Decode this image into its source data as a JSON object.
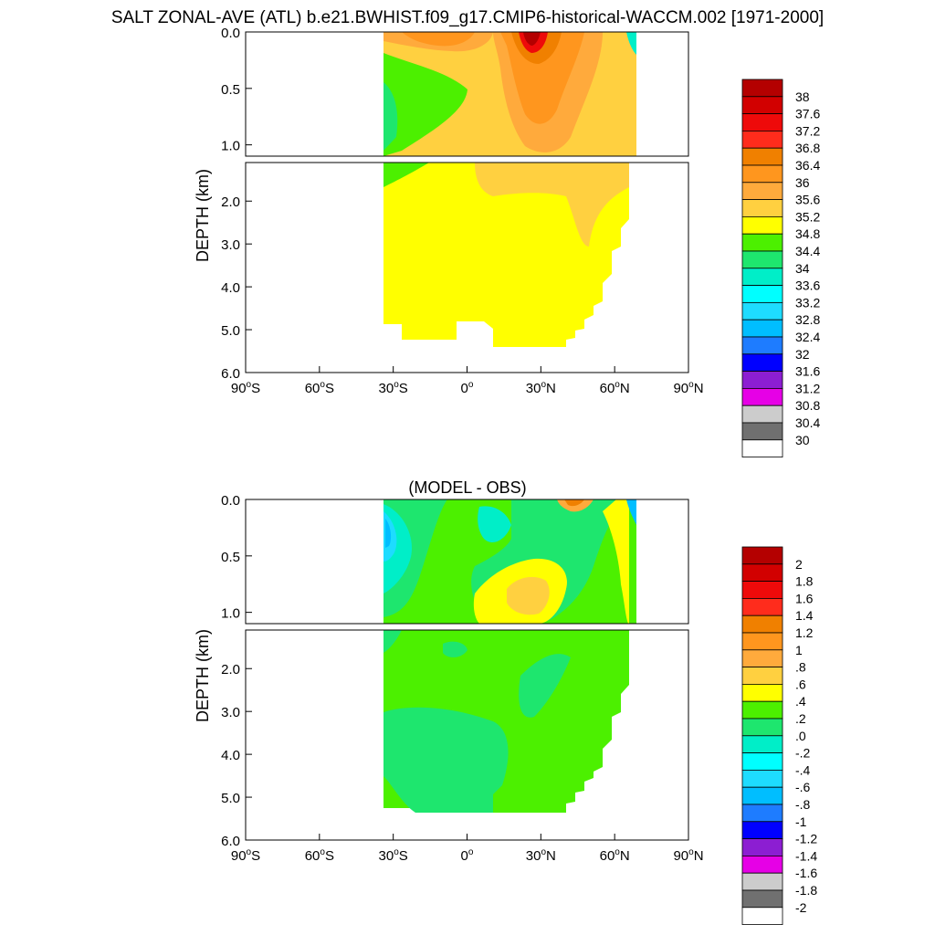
{
  "title": "SALT ZONAL-AVE (ATL) b.e21.BWHIST.f09_g17.CMIP6-historical-WACCM.002 [1971-2000]",
  "chart_data": [
    {
      "type": "heatmap",
      "panel": "top",
      "subtitle": "",
      "ylabel": "DEPTH (km)",
      "xlim": [
        -90,
        90
      ],
      "ylim": [
        0,
        6
      ],
      "y_ticks_upper": [
        "0.0",
        "0.5",
        "1.0"
      ],
      "y_ticks_lower": [
        "2.0",
        "3.0",
        "4.0",
        "5.0",
        "6.0"
      ],
      "x_ticks": [
        {
          "deg": "90",
          "sfx": "S"
        },
        {
          "deg": "60",
          "sfx": "S"
        },
        {
          "deg": "30",
          "sfx": "S"
        },
        {
          "deg": "0",
          "sfx": ""
        },
        {
          "deg": "30",
          "sfx": "N"
        },
        {
          "deg": "60",
          "sfx": "N"
        },
        {
          "deg": "90",
          "sfx": "N"
        }
      ],
      "colorbar": {
        "labels": [
          "38",
          "37.6",
          "37.2",
          "36.8",
          "36.4",
          "36",
          "35.6",
          "35.2",
          "34.8",
          "34.4",
          "34",
          "33.6",
          "33.2",
          "32.8",
          "32.4",
          "32",
          "31.6",
          "31.2",
          "30.8",
          "30.4",
          "30"
        ],
        "colors": [
          "#b40000",
          "#d20000",
          "#ee0a0a",
          "#ff2c1c",
          "#f08000",
          "#ff961e",
          "#ffaa3c",
          "#ffd040",
          "#ffff00",
          "#4cf000",
          "#1ee66e",
          "#00eec8",
          "#00ffff",
          "#1edcff",
          "#00beff",
          "#1e7cff",
          "#0000ff",
          "#8c1ed2",
          "#e600e6",
          "#cccccc",
          "#707070",
          "#ffffff"
        ]
      },
      "note_values": "Atlantic zonal-mean salinity (psu) vs latitude and depth; data extent ~34S to ~65N"
    },
    {
      "type": "heatmap",
      "panel": "bottom",
      "subtitle": "(MODEL - OBS)",
      "ylabel": "DEPTH (km)",
      "xlim": [
        -90,
        90
      ],
      "ylim": [
        0,
        6
      ],
      "y_ticks_upper": [
        "0.0",
        "0.5",
        "1.0"
      ],
      "y_ticks_lower": [
        "2.0",
        "3.0",
        "4.0",
        "5.0",
        "6.0"
      ],
      "x_ticks": [
        {
          "deg": "90",
          "sfx": "S"
        },
        {
          "deg": "60",
          "sfx": "S"
        },
        {
          "deg": "30",
          "sfx": "S"
        },
        {
          "deg": "0",
          "sfx": ""
        },
        {
          "deg": "30",
          "sfx": "N"
        },
        {
          "deg": "60",
          "sfx": "N"
        },
        {
          "deg": "90",
          "sfx": "N"
        }
      ],
      "colorbar": {
        "labels": [
          "2",
          "1.8",
          "1.6",
          "1.4",
          "1.2",
          "1",
          ".8",
          ".6",
          ".4",
          ".2",
          ".0",
          "-.2",
          "-.4",
          "-.6",
          "-.8",
          "-1",
          "-1.2",
          "-1.4",
          "-1.6",
          "-1.8",
          "-2"
        ],
        "colors": [
          "#b40000",
          "#d20000",
          "#ee0a0a",
          "#ff2c1c",
          "#f08000",
          "#ff961e",
          "#ffaa3c",
          "#ffd040",
          "#ffff00",
          "#4cf000",
          "#1ee66e",
          "#00eec8",
          "#00ffff",
          "#1edcff",
          "#00beff",
          "#1e7cff",
          "#0000ff",
          "#8c1ed2",
          "#e600e6",
          "#cccccc",
          "#707070",
          "#ffffff"
        ]
      }
    }
  ]
}
